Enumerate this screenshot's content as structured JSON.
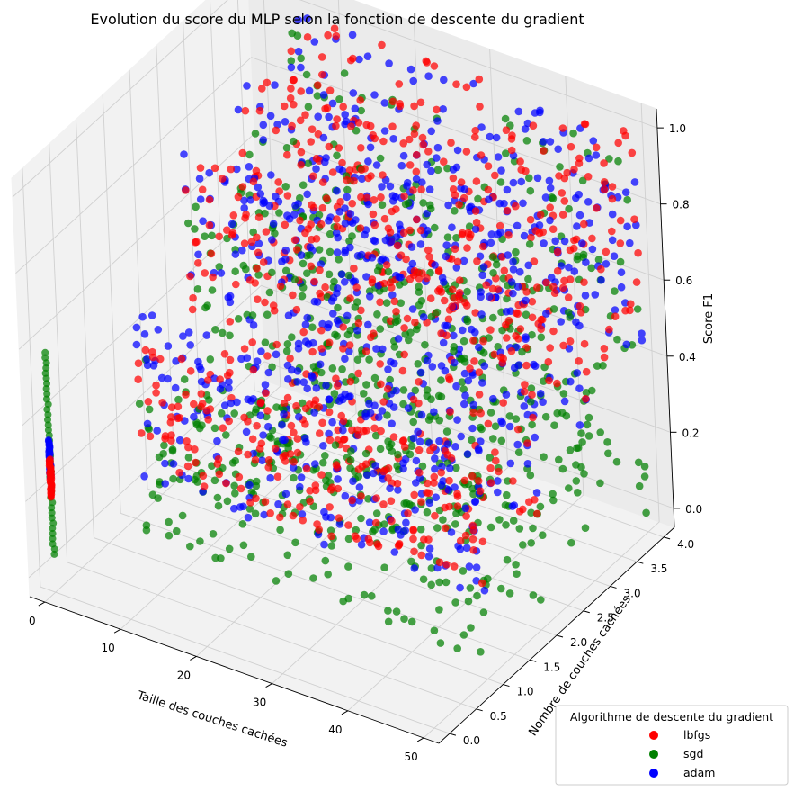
{
  "chart_data": {
    "type": "scatter",
    "projection": "3d",
    "title": "Evolution du score du MLP selon la fonction de descente du gradient",
    "xlabel": "Taille des couches cachées",
    "ylabel": "Nombre de couches cachées",
    "zlabel": "Score F1",
    "xlim": [
      -2,
      52
    ],
    "ylim": [
      -0.2,
      4.2
    ],
    "zlim": [
      -0.05,
      1.05
    ],
    "x_ticks": [
      "0",
      "10",
      "20",
      "30",
      "40",
      "50"
    ],
    "y_ticks": [
      "0.0",
      "0.5",
      "1.0",
      "1.5",
      "2.0",
      "2.5",
      "3.0",
      "3.5",
      "4.0"
    ],
    "z_ticks": [
      "0.0",
      "0.2",
      "0.4",
      "0.6",
      "0.8",
      "1.0"
    ],
    "grid": true,
    "legend": {
      "title": "Algorithme de descente du gradient",
      "position": "bottom-right",
      "entries": [
        "lbfgs",
        "sgd",
        "adam"
      ]
    },
    "series": [
      {
        "name": "lbfgs",
        "color": "#ff0000",
        "points": [
          {
            "x": [
              5,
              50
            ],
            "y": 1,
            "z": [
              0.18,
              0.52
            ]
          },
          {
            "x": [
              5,
              50
            ],
            "y": 2,
            "z": [
              0.2,
              0.9
            ]
          },
          {
            "x": [
              5,
              50
            ],
            "y": 3,
            "z": [
              0.4,
              0.98
            ]
          },
          {
            "x": [
              5,
              50
            ],
            "y": 4,
            "z": [
              0.35,
              1.0
            ]
          },
          {
            "x": 0,
            "y": 0,
            "z": [
              0.2,
              0.3
            ]
          }
        ]
      },
      {
        "name": "sgd",
        "color": "#008000",
        "points": [
          {
            "x": 0,
            "y": 0,
            "z": [
              0.05,
              0.58
            ]
          },
          {
            "x": [
              5,
              50
            ],
            "y": 1,
            "z": [
              0.0,
              0.5
            ]
          },
          {
            "x": [
              5,
              50
            ],
            "y": 2,
            "z": [
              0.0,
              0.75
            ]
          },
          {
            "x": [
              5,
              50
            ],
            "y": 3,
            "z": [
              0.0,
              0.85
            ]
          },
          {
            "x": [
              5,
              50
            ],
            "y": 4,
            "z": [
              0.0,
              0.95
            ]
          }
        ]
      },
      {
        "name": "adam",
        "color": "#0000ff",
        "points": [
          {
            "x": 0,
            "y": 0,
            "z": [
              0.25,
              0.35
            ]
          },
          {
            "x": [
              5,
              50
            ],
            "y": 1,
            "z": [
              0.15,
              0.6
            ]
          },
          {
            "x": [
              5,
              50
            ],
            "y": 2,
            "z": [
              0.2,
              0.9
            ]
          },
          {
            "x": [
              5,
              50
            ],
            "y": 3,
            "z": [
              0.3,
              0.97
            ]
          },
          {
            "x": [
              5,
              50
            ],
            "y": 4,
            "z": [
              0.4,
              1.0
            ]
          }
        ]
      }
    ]
  }
}
